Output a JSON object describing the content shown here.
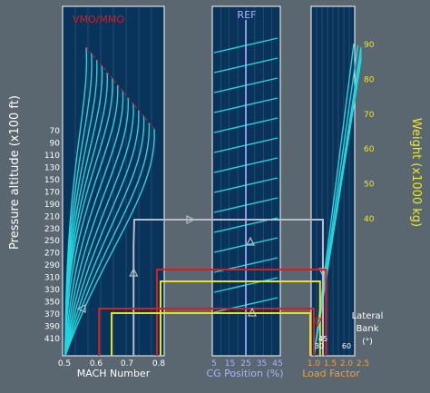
{
  "chart_data": {
    "type": "line",
    "panels": [
      {
        "name": "mach-panel",
        "title": "VMO/MMO",
        "x_label": "MACH Number",
        "x_ticks": [
          "0.5",
          "0.6",
          "0.7",
          "0.8"
        ],
        "xlim": [
          0.5,
          0.8
        ],
        "y_label": "Pressure altitude (x100 ft)",
        "y_ticks": [
          "70",
          "90",
          "110",
          "130",
          "150",
          "170",
          "190",
          "210",
          "230",
          "250",
          "270",
          "290",
          "310",
          "330",
          "350",
          "370",
          "390",
          "410"
        ],
        "ylim": [
          70,
          410
        ],
        "curve_count": 14,
        "limit_line": "VMO/MMO"
      },
      {
        "name": "cg-panel",
        "reference_label": "REF",
        "reference_value": 25,
        "x_label": "CG Position (%)",
        "x_ticks": [
          "5",
          "15",
          "25",
          "35",
          "45"
        ],
        "xlim": [
          5,
          45
        ],
        "line_count": 14
      },
      {
        "name": "load-panel",
        "x_label": "Load Factor",
        "x_ticks": [
          "1.0",
          "1.5",
          "2.0",
          "2.5"
        ],
        "xlim": [
          1.0,
          2.5
        ],
        "y_label": "Weight (x1000 kg)",
        "y_ticks": [
          "40",
          "50",
          "60",
          "70",
          "80",
          "90"
        ],
        "ylim": [
          40,
          90
        ],
        "line_count": 10,
        "bank_label": [
          "Lateral",
          "Bank",
          "(°)"
        ],
        "bank_ticks": [
          "30",
          "45",
          "60"
        ]
      }
    ],
    "example_lines": [
      {
        "color": "#b8bcc8",
        "mach": 0.72,
        "altitude": 210,
        "cg": 25,
        "load_factor": 1.0
      },
      {
        "color": "#d42020",
        "mach": 0.79,
        "altitude": 245,
        "load_factor": 1.37
      },
      {
        "color": "#e8e020",
        "mach": 0.8,
        "altitude": 260,
        "load_factor": 1.3
      },
      {
        "color": "#d42020",
        "mach": 0.61,
        "altitude": 330,
        "load_factor": 1.25
      },
      {
        "color": "#e8e020",
        "mach": 0.65,
        "altitude": 330,
        "load_factor": 1.15
      }
    ],
    "colors": {
      "curve": "#22d6e0",
      "limit": "#d42020",
      "background": "#5a6670",
      "panel": "#08335a",
      "axis_text": "#ffffff",
      "weight_text": "#f0e820",
      "load_text": "#f0a040",
      "cg_text": "#a8b4ff",
      "mach_text": "#ffffff"
    }
  }
}
